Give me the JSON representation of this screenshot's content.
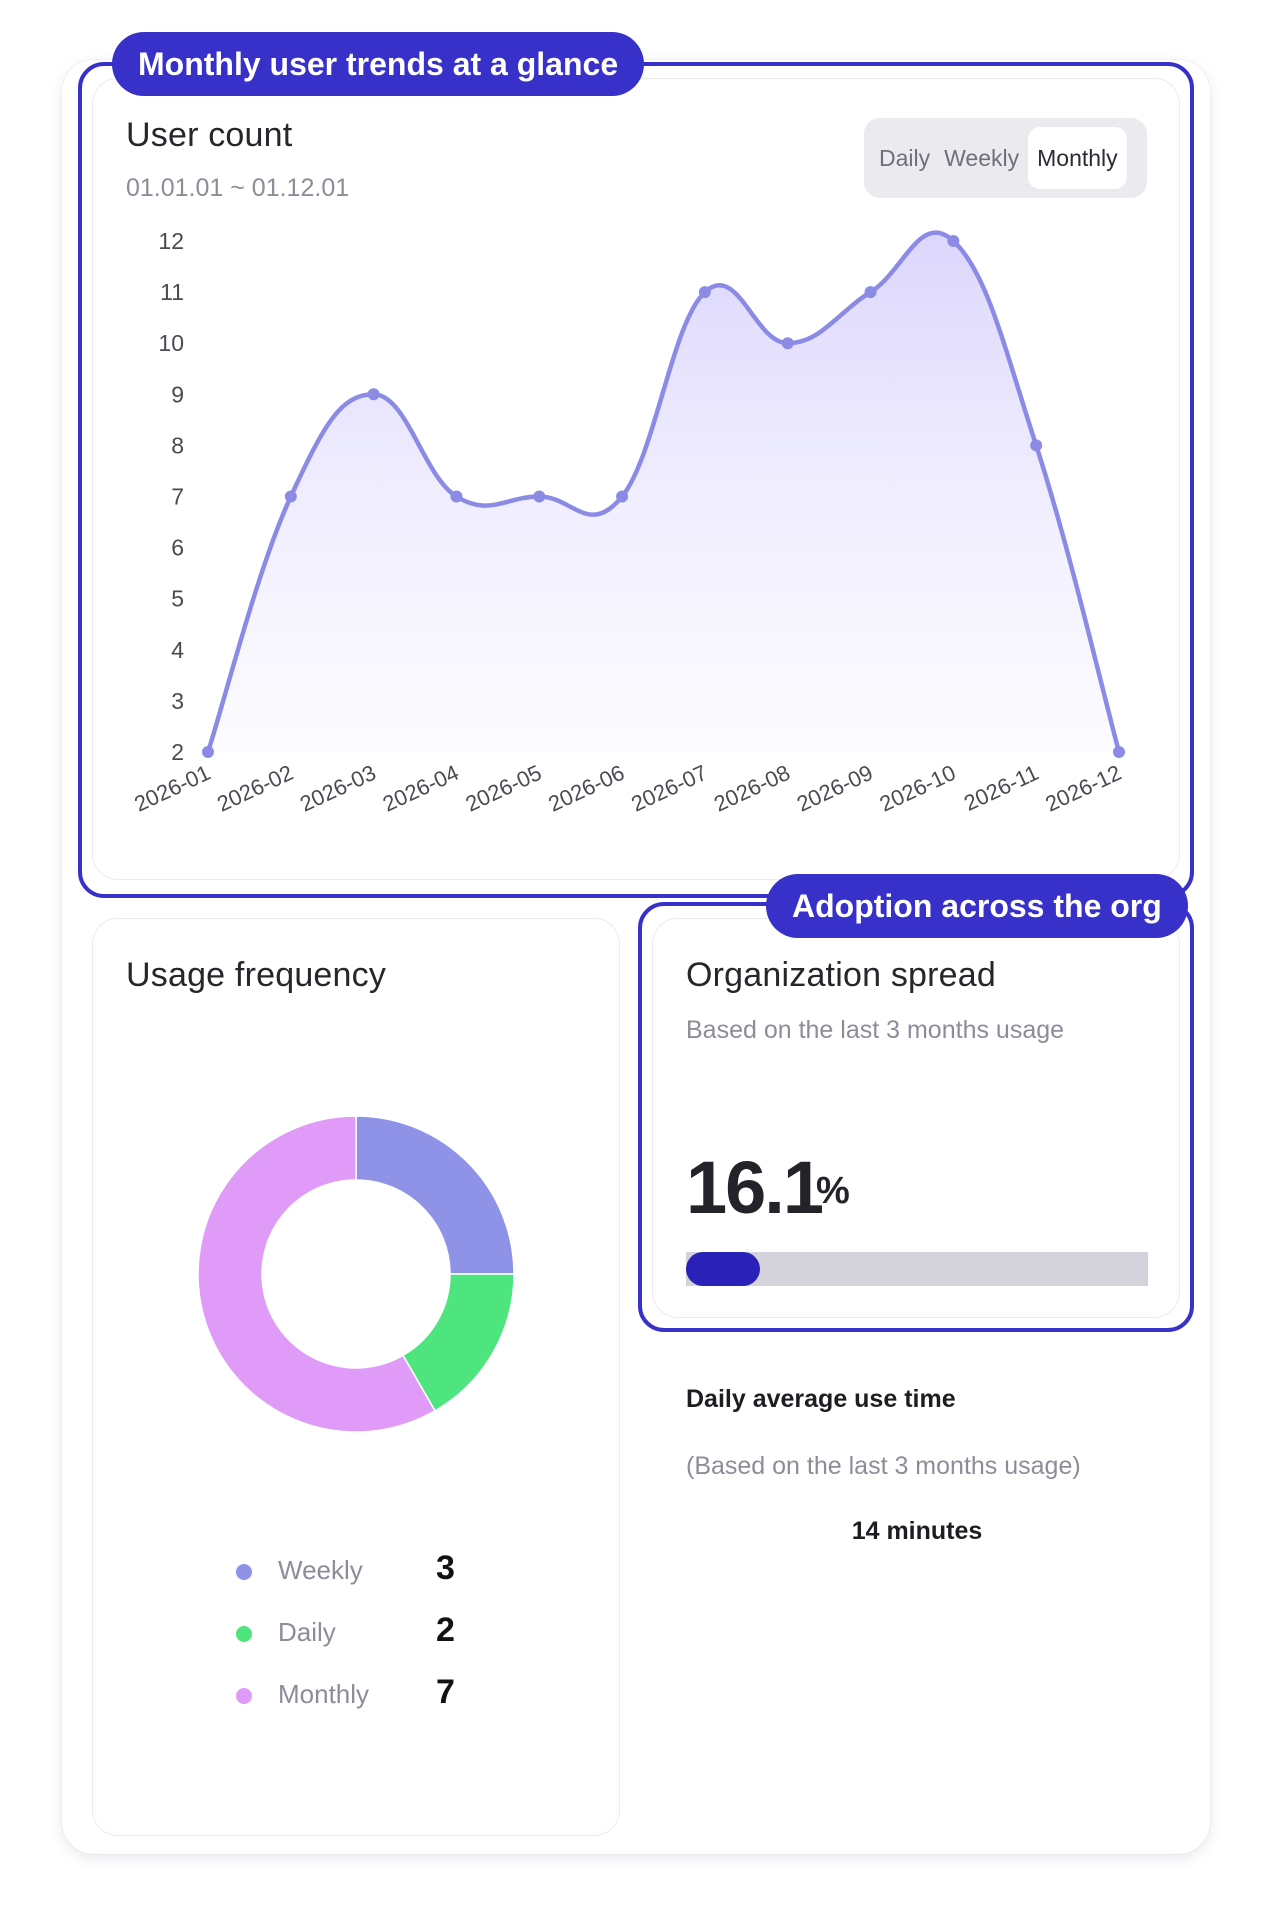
{
  "callouts": {
    "top": "Monthly user trends at a glance",
    "org": "Adoption across the org"
  },
  "user_count": {
    "title": "User count",
    "date_range": "01.01.01 ~ 01.12.01",
    "toggle": {
      "options": [
        "Daily",
        "Weekly",
        "Monthly"
      ],
      "selected": "Monthly"
    }
  },
  "usage_frequency": {
    "title": "Usage frequency",
    "legend": [
      {
        "label": "Weekly",
        "value": "3"
      },
      {
        "label": "Daily",
        "value": "2"
      },
      {
        "label": "Monthly",
        "value": "7"
      }
    ]
  },
  "organization_spread": {
    "title": "Organization spread",
    "subtitle": "Based on the last 3 months usage",
    "value": "16.1",
    "unit": "%",
    "progress_fraction": 0.161
  },
  "daily_average": {
    "title": "Daily average use time",
    "subtitle": "(Based on the last 3 months usage)",
    "value": "14 minutes"
  },
  "colors": {
    "accent": "#3730c9",
    "line": "#8b8be6",
    "weekly": "#8e93e8",
    "daily": "#4ee57e",
    "monthly": "#df9bf7"
  },
  "chart_data": [
    {
      "type": "area",
      "title": "User count",
      "categories": [
        "2026-01",
        "2026-02",
        "2026-03",
        "2026-04",
        "2026-05",
        "2026-06",
        "2026-07",
        "2026-08",
        "2026-09",
        "2026-10",
        "2026-11",
        "2026-12"
      ],
      "values": [
        2,
        7,
        9,
        7,
        7,
        7,
        11,
        10,
        11,
        12,
        8,
        2
      ],
      "y_ticks": [
        2,
        3,
        4,
        5,
        6,
        7,
        8,
        9,
        10,
        11,
        12
      ],
      "ylim": [
        2,
        12
      ],
      "grid": false,
      "smooth": true
    },
    {
      "type": "pie",
      "title": "Usage frequency",
      "donut": true,
      "labels": [
        "Weekly",
        "Daily",
        "Monthly"
      ],
      "values": [
        3,
        2,
        7
      ],
      "colors": [
        "#8e93e8",
        "#4ee57e",
        "#df9bf7"
      ],
      "legend": "bottom"
    }
  ]
}
